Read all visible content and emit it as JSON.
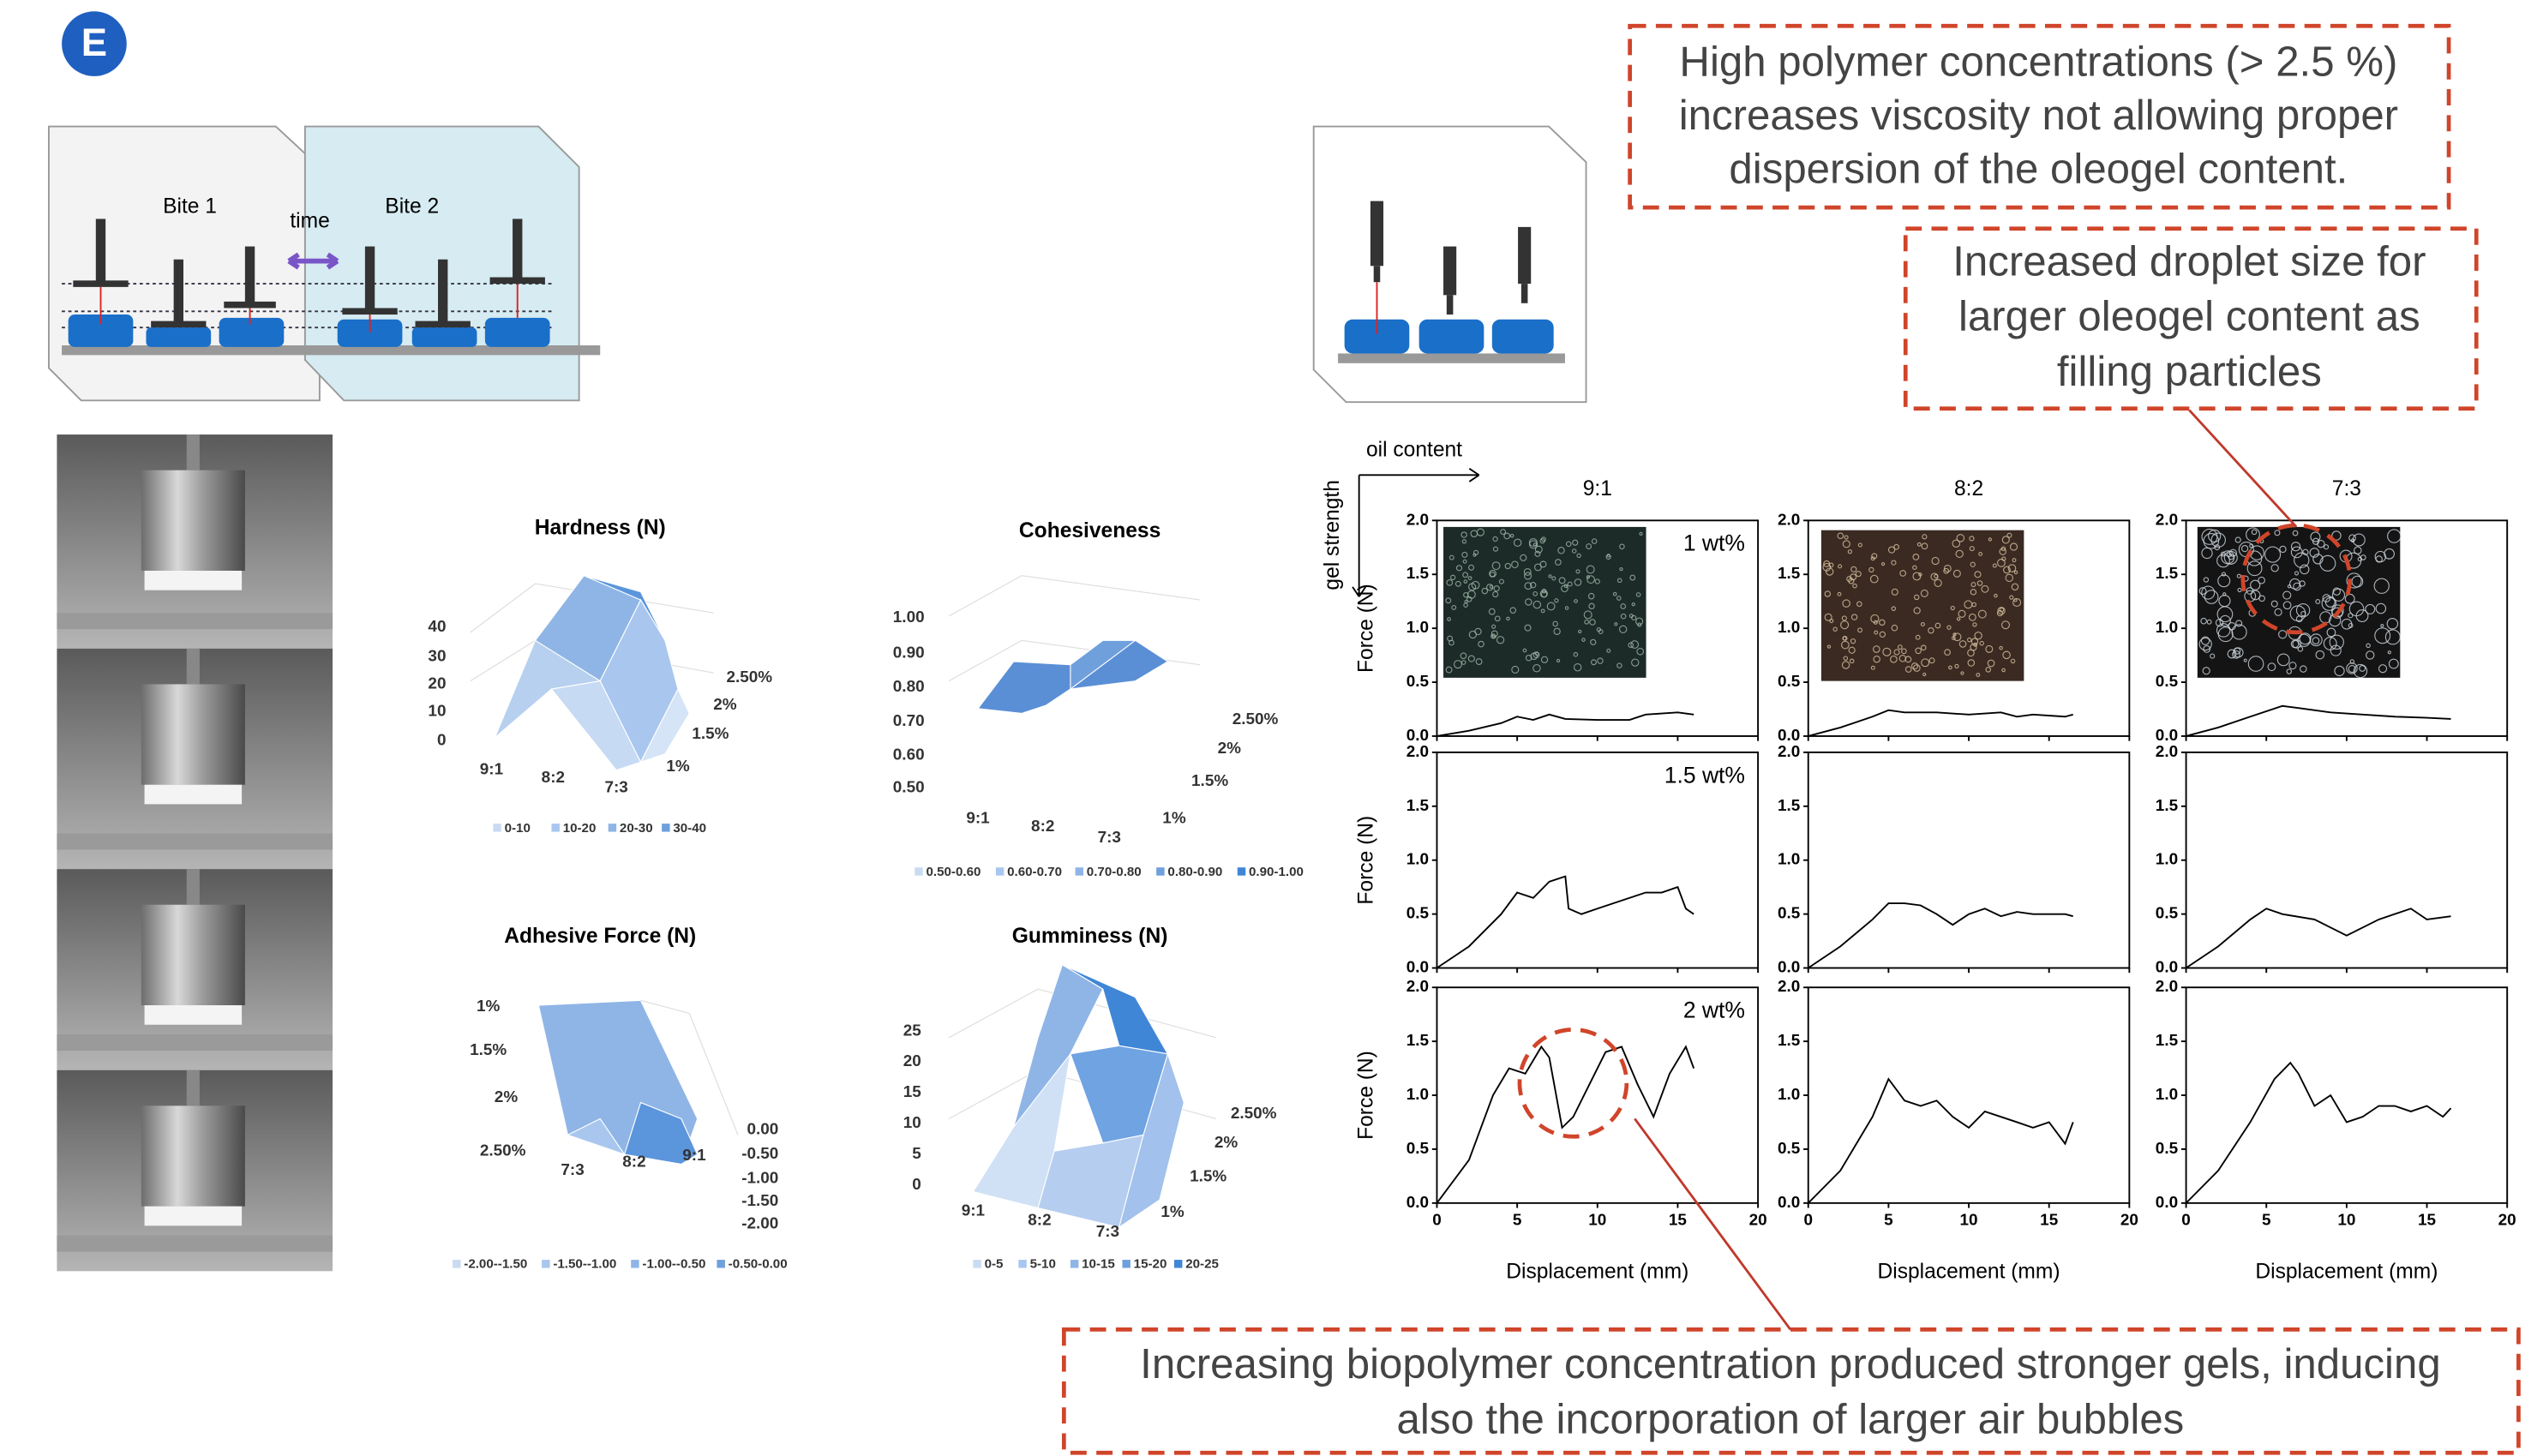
{
  "panel_label": "E",
  "tpa_diagram": {
    "bite1": "Bite 1",
    "bite2": "Bite 2",
    "time": "time"
  },
  "surface_charts": [
    {
      "title": "Hardness (N)",
      "z_ticks": [
        "40",
        "30",
        "20",
        "10",
        "0"
      ],
      "x_categories": [
        "9:1",
        "8:2",
        "7:3"
      ],
      "y_categories": [
        "1%",
        "1.5%",
        "2%",
        "2.50%"
      ],
      "legend": [
        "0-10",
        "10-20",
        "20-30",
        "30-40"
      ]
    },
    {
      "title": "Cohesiveness",
      "z_ticks": [
        "1.00",
        "0.90",
        "0.80",
        "0.70",
        "0.60",
        "0.50"
      ],
      "x_categories": [
        "9:1",
        "8:2",
        "7:3"
      ],
      "y_categories": [
        "1%",
        "1.5%",
        "2%",
        "2.50%"
      ],
      "legend": [
        "0.50-0.60",
        "0.60-0.70",
        "0.70-0.80",
        "0.80-0.90",
        "0.90-1.00"
      ]
    },
    {
      "title": "Adhesive Force (N)",
      "z_ticks": [
        "0.00",
        "-0.50",
        "-1.00",
        "-1.50",
        "-2.00"
      ],
      "x_categories": [
        "7:3",
        "8:2",
        "9:1"
      ],
      "y_categories": [
        "1%",
        "1.5%",
        "2%",
        "2.50%"
      ],
      "legend": [
        "-2.00--1.50",
        "-1.50--1.00",
        "-1.00--0.50",
        "-0.50-0.00"
      ]
    },
    {
      "title": "Gumminess (N)",
      "z_ticks": [
        "25",
        "20",
        "15",
        "10",
        "5",
        "0"
      ],
      "x_categories": [
        "9:1",
        "8:2",
        "7:3"
      ],
      "y_categories": [
        "1%",
        "1.5%",
        "2%",
        "2.50%"
      ],
      "legend": [
        "0-5",
        "5-10",
        "10-15",
        "15-20",
        "20-25"
      ]
    }
  ],
  "force_plots": {
    "oil_content_label": "oil content",
    "gel_strength_label": "gel strength",
    "x_axis_label": "Displacement (mm)",
    "y_axis_label": "Force (N)",
    "columns": [
      "9:1",
      "8:2",
      "7:3"
    ],
    "rows": [
      "1 wt%",
      "1.5 wt%",
      "2 wt%"
    ],
    "xlim": [
      0,
      20
    ],
    "xticks": [
      0,
      5,
      10,
      15,
      20
    ],
    "ylim": [
      0,
      2
    ],
    "yticks": [
      {
        "value": 0,
        "label": "0.0"
      },
      {
        "value": 0.5,
        "label": "0.5"
      },
      {
        "value": 1,
        "label": "1.0"
      },
      {
        "value": 1.5,
        "label": "1.5"
      },
      {
        "value": 2,
        "label": "2.0"
      }
    ],
    "curves": [
      [
        {
          "x": [
            0,
            2,
            4,
            5,
            6,
            7,
            8,
            10,
            12,
            13,
            15,
            16
          ],
          "y": [
            0,
            0.05,
            0.12,
            0.18,
            0.15,
            0.2,
            0.16,
            0.15,
            0.15,
            0.2,
            0.22,
            0.2
          ]
        },
        {
          "x": [
            0,
            2,
            4,
            5,
            6,
            8,
            10,
            12,
            13,
            14,
            16,
            16.5
          ],
          "y": [
            0,
            0.08,
            0.18,
            0.24,
            0.22,
            0.22,
            0.2,
            0.22,
            0.18,
            0.2,
            0.18,
            0.2
          ]
        },
        {
          "x": [
            0,
            2,
            4,
            6,
            7,
            9,
            11,
            13,
            15,
            16.5
          ],
          "y": [
            0,
            0.08,
            0.18,
            0.28,
            0.26,
            0.22,
            0.2,
            0.18,
            0.17,
            0.16
          ]
        }
      ],
      [
        {
          "x": [
            0,
            2,
            4,
            5,
            6,
            7,
            8,
            8.2,
            9,
            10,
            12,
            13,
            14,
            15,
            15.5,
            16
          ],
          "y": [
            0,
            0.2,
            0.5,
            0.7,
            0.65,
            0.8,
            0.85,
            0.55,
            0.5,
            0.55,
            0.65,
            0.7,
            0.7,
            0.75,
            0.55,
            0.5
          ]
        },
        {
          "x": [
            0,
            2,
            4,
            5,
            6,
            7,
            8,
            9,
            10,
            11,
            12,
            13,
            14,
            16,
            16.5
          ],
          "y": [
            0,
            0.2,
            0.45,
            0.6,
            0.6,
            0.58,
            0.5,
            0.4,
            0.5,
            0.55,
            0.48,
            0.52,
            0.5,
            0.5,
            0.48
          ]
        },
        {
          "x": [
            0,
            2,
            4,
            5,
            6,
            8,
            10,
            12,
            14,
            15,
            16.5
          ],
          "y": [
            0,
            0.2,
            0.45,
            0.55,
            0.5,
            0.45,
            0.3,
            0.45,
            0.55,
            0.45,
            0.48
          ]
        }
      ],
      [
        {
          "x": [
            0,
            2,
            3.5,
            4.5,
            5.5,
            6.5,
            7,
            7.8,
            8.5,
            9.5,
            10.5,
            11.5,
            12.5,
            13.5,
            14.5,
            15.5,
            16
          ],
          "y": [
            0,
            0.4,
            1.0,
            1.25,
            1.2,
            1.45,
            1.35,
            0.7,
            0.8,
            1.1,
            1.4,
            1.45,
            1.1,
            0.8,
            1.2,
            1.45,
            1.25
          ]
        },
        {
          "x": [
            0,
            2,
            4,
            5,
            6,
            7,
            8,
            9,
            10,
            11,
            12,
            13,
            14,
            15,
            16,
            16.5
          ],
          "y": [
            0,
            0.3,
            0.8,
            1.15,
            0.95,
            0.9,
            0.95,
            0.8,
            0.7,
            0.85,
            0.8,
            0.75,
            0.7,
            0.75,
            0.55,
            0.75
          ]
        },
        {
          "x": [
            0,
            2,
            4,
            5.5,
            6.5,
            7,
            8,
            9,
            10,
            11,
            12,
            13,
            14,
            15,
            16,
            16.5
          ],
          "y": [
            0,
            0.3,
            0.75,
            1.15,
            1.3,
            1.2,
            0.9,
            1.0,
            0.75,
            0.8,
            0.9,
            0.9,
            0.85,
            0.9,
            0.8,
            0.88
          ]
        }
      ]
    ]
  },
  "annotations": [
    [
      "High polymer concentrations (> 2.5 %)",
      "increases viscosity not allowing proper",
      "dispersion of the oleogel content."
    ],
    [
      "Increased droplet size for",
      "larger oleogel content as",
      "filling particles"
    ],
    [
      "Increasing biopolymer concentration produced stronger gels, inducing",
      "also the incorporation of larger air bubbles"
    ]
  ]
}
